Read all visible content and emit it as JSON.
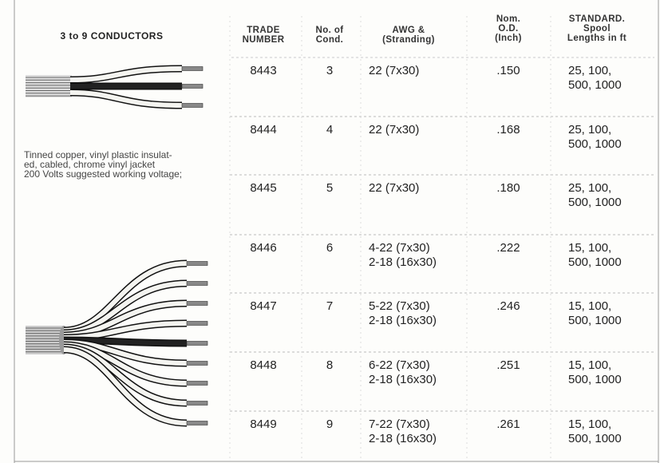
{
  "left_panel": {
    "title": "3 to 9 CONDUCTORS",
    "description": [
      "Tinned copper, vinyl plastic insulat-",
      "ed, cabled, chrome vinyl jacket",
      "200 Volts suggested working voltage;"
    ]
  },
  "table": {
    "headers": [
      [
        "TRADE",
        "NUMBER"
      ],
      [
        "No. of",
        "Cond."
      ],
      [
        "AWG &",
        "(Stranding)"
      ],
      [
        "Nom.",
        "O.D.",
        "(Inch)"
      ],
      [
        "STANDARD.",
        "Spool",
        "Lengths in ft"
      ]
    ],
    "rows": [
      [
        "8443",
        "3",
        [
          "22 (7x30)"
        ],
        ".150",
        [
          "25, 100,",
          "500, 1000"
        ]
      ],
      [
        "8444",
        "4",
        [
          "22 (7x30)"
        ],
        ".168",
        [
          "25, 100,",
          "500, 1000"
        ]
      ],
      [
        "8445",
        "5",
        [
          "22 (7x30)"
        ],
        ".180",
        [
          "25, 100,",
          "500, 1000"
        ]
      ],
      [
        "8446",
        "6",
        [
          "4-22 (7x30)",
          "2-18 (16x30)"
        ],
        ".222",
        [
          "15, 100,",
          "500, 1000"
        ]
      ],
      [
        "8447",
        "7",
        [
          "5-22 (7x30)",
          "2-18 (16x30)"
        ],
        ".246",
        [
          "15, 100,",
          "500, 1000"
        ]
      ],
      [
        "8448",
        "8",
        [
          "6-22 (7x30)",
          "2-18 (16x30)"
        ],
        ".251",
        [
          "15, 100,",
          "500, 1000"
        ]
      ],
      [
        "8449",
        "9",
        [
          "7-22 (7x30)",
          "2-18 (16x30)"
        ],
        ".261",
        [
          "15, 100,",
          "500, 1000"
        ]
      ]
    ]
  }
}
